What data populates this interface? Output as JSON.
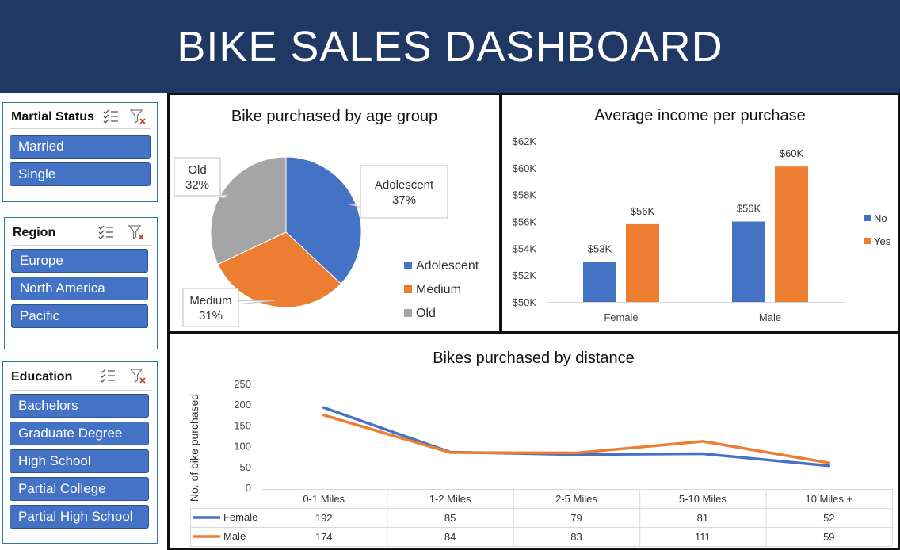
{
  "header": {
    "title": "BIKE SALES DASHBOARD"
  },
  "slicers": {
    "marital": {
      "title": "Martial Status",
      "items": [
        "Married",
        "Single"
      ]
    },
    "region": {
      "title": "Region",
      "items": [
        "Europe",
        "North America",
        "Pacific"
      ]
    },
    "education": {
      "title": "Education",
      "items": [
        "Bachelors",
        "Graduate Degree",
        "High School",
        "Partial College",
        "Partial High School"
      ]
    }
  },
  "colors": {
    "blue": "#4472c4",
    "orange": "#ed7d31",
    "gray": "#a5a5a5",
    "banner": "#203864",
    "slicer": "#4472c4"
  },
  "chart_data": [
    {
      "type": "pie",
      "title": "Bike purchased by age group",
      "categories": [
        "Adolescent",
        "Medium",
        "Old"
      ],
      "values": [
        37,
        31,
        32
      ],
      "value_labels": [
        "37%",
        "31%",
        "32%"
      ],
      "colors": [
        "#4472c4",
        "#ed7d31",
        "#a5a5a5"
      ],
      "legend": "right"
    },
    {
      "type": "bar",
      "title": "Average income per purchase",
      "categories": [
        "Female",
        "Male"
      ],
      "series": [
        {
          "name": "No",
          "values": [
            53000,
            56000
          ],
          "labels": [
            "$53K",
            "$56K"
          ],
          "color": "#4472c4"
        },
        {
          "name": "Yes",
          "values": [
            55800,
            60100
          ],
          "labels": [
            "$56K",
            "$60K"
          ],
          "color": "#ed7d31"
        }
      ],
      "ylim": [
        50000,
        62000
      ],
      "yticks": [
        "$50K",
        "$52K",
        "$54K",
        "$56K",
        "$58K",
        "$60K",
        "$62K"
      ],
      "legend": "right"
    },
    {
      "type": "line",
      "title": "Bikes purchased by distance",
      "ylabel": "No. of bike purchased",
      "categories": [
        "0-1 Miles",
        "1-2 Miles",
        "2-5 Miles",
        "5-10 Miles",
        "10 Miles +"
      ],
      "series": [
        {
          "name": "Female",
          "values": [
            192,
            85,
            79,
            81,
            52
          ],
          "color": "#4472c4"
        },
        {
          "name": "Male",
          "values": [
            174,
            84,
            83,
            111,
            59
          ],
          "color": "#ed7d31"
        }
      ],
      "ylim": [
        0,
        250
      ],
      "yticks": [
        "0",
        "50",
        "100",
        "150",
        "200",
        "250"
      ],
      "data_table": true
    }
  ]
}
